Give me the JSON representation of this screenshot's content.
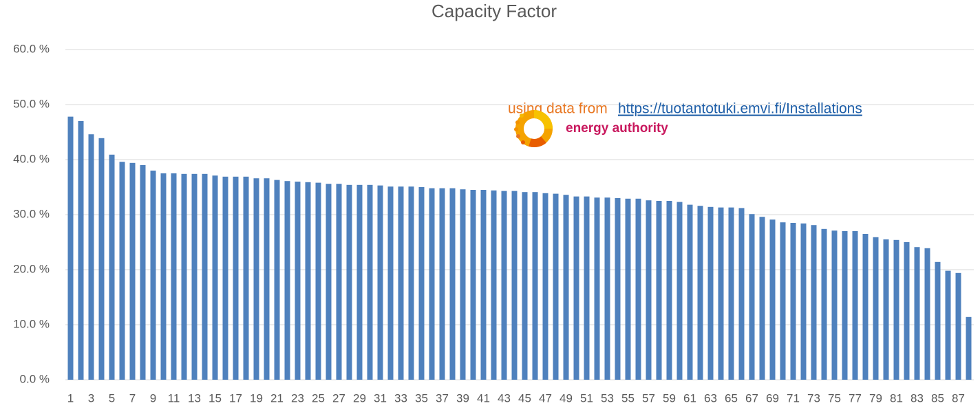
{
  "chart_data": {
    "type": "bar",
    "title": "Capacity Factor",
    "annotations": {
      "source_prefix": "using data from",
      "source_link": "https://tuotantotuki.emvi.fi/Installations",
      "logo_text": "energy authority"
    },
    "categories": [
      1,
      null,
      3,
      null,
      5,
      null,
      7,
      null,
      9,
      null,
      11,
      null,
      13,
      null,
      15,
      null,
      17,
      null,
      19,
      null,
      21,
      null,
      23,
      null,
      25,
      null,
      27,
      null,
      29,
      null,
      31,
      null,
      33,
      null,
      35,
      null,
      37,
      null,
      39,
      null,
      41,
      null,
      43,
      null,
      45,
      null,
      47,
      null,
      49,
      null,
      51,
      null,
      53,
      null,
      55,
      null,
      57,
      null,
      59,
      null,
      61,
      null,
      63,
      null,
      65,
      null,
      67,
      null,
      69,
      null,
      71,
      null,
      73,
      null,
      75,
      null,
      77,
      null,
      79,
      null,
      81,
      null,
      83,
      null,
      85,
      null,
      87,
      null
    ],
    "values": [
      47.8,
      47.0,
      44.6,
      43.9,
      40.9,
      39.6,
      39.4,
      39.0,
      38.0,
      37.5,
      37.5,
      37.4,
      37.4,
      37.4,
      37.1,
      36.9,
      36.9,
      36.9,
      36.6,
      36.6,
      36.3,
      36.1,
      36.0,
      35.9,
      35.8,
      35.6,
      35.6,
      35.4,
      35.4,
      35.4,
      35.3,
      35.1,
      35.1,
      35.1,
      35.0,
      34.8,
      34.8,
      34.8,
      34.6,
      34.5,
      34.5,
      34.4,
      34.3,
      34.3,
      34.1,
      34.1,
      33.9,
      33.8,
      33.6,
      33.3,
      33.3,
      33.1,
      33.1,
      33.0,
      32.9,
      32.9,
      32.6,
      32.5,
      32.5,
      32.3,
      31.8,
      31.6,
      31.4,
      31.3,
      31.3,
      31.2,
      30.1,
      29.6,
      29.1,
      28.6,
      28.5,
      28.4,
      28.1,
      27.4,
      27.1,
      27.0,
      27.0,
      26.5,
      25.9,
      25.5,
      25.4,
      25.0,
      24.1,
      23.9,
      21.4,
      19.8,
      19.4,
      11.4
    ],
    "color": "#4f81bd",
    "ylim": [
      0,
      60
    ],
    "yticks": [
      {
        "value": 0,
        "label": "0.0 %"
      },
      {
        "value": 10,
        "label": "10.0 %"
      },
      {
        "value": 20,
        "label": "20.0 %"
      },
      {
        "value": 30,
        "label": "30.0 %"
      },
      {
        "value": 40,
        "label": "40.0 %"
      },
      {
        "value": 50,
        "label": "50.0 %"
      },
      {
        "value": 60,
        "label": "60.0 %"
      }
    ],
    "grid": true
  }
}
